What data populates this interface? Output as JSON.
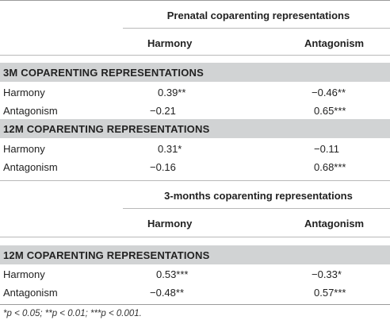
{
  "table1": {
    "header_group": "Prenatal coparenting representations",
    "col_harmony": "Harmony",
    "col_antagonism": "Antagonism",
    "sections": [
      {
        "title": "3M COPARENTING REPRESENTATIONS",
        "rows": [
          {
            "label": "Harmony",
            "harmony": "0.39**",
            "antagonism": "−0.46**"
          },
          {
            "label": "Antagonism",
            "harmony": "−0.21",
            "antagonism": "0.65***"
          }
        ]
      },
      {
        "title": "12M COPARENTING REPRESENTATIONS",
        "rows": [
          {
            "label": "Harmony",
            "harmony": "0.31*",
            "antagonism": "−0.11"
          },
          {
            "label": "Antagonism",
            "harmony": "−0.16",
            "antagonism": "0.68***"
          }
        ]
      }
    ]
  },
  "table2": {
    "header_group": "3-months coparenting representations",
    "col_harmony": "Harmony",
    "col_antagonism": "Antagonism",
    "sections": [
      {
        "title": "12M COPARENTING REPRESENTATIONS",
        "rows": [
          {
            "label": "Harmony",
            "harmony": "0.53***",
            "antagonism": "−0.33*"
          },
          {
            "label": "Antagonism",
            "harmony": "−0.48**",
            "antagonism": "0.57***"
          }
        ]
      }
    ]
  },
  "footnote": "*p < 0.05; **p < 0.01; ***p < 0.001."
}
